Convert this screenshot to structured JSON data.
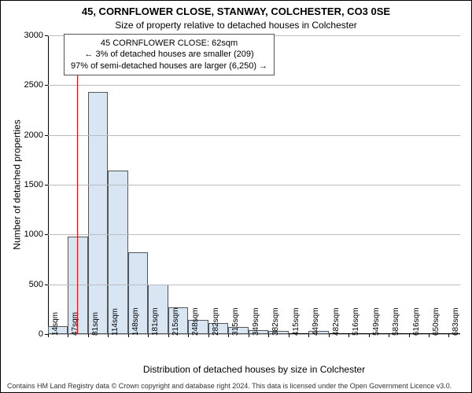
{
  "title": {
    "line1": "45, CORNFLOWER CLOSE, STANWAY, COLCHESTER, CO3 0SE",
    "line2": "Size of property relative to detached houses in Colchester",
    "fontsize_line1": 13,
    "fontsize_line2": 12
  },
  "callout": {
    "line1": "45 CORNFLOWER CLOSE: 62sqm",
    "line2": "← 3% of detached houses are smaller (209)",
    "line3": "97% of semi-detached houses are larger (6,250) →"
  },
  "ylabel": "Number of detached properties",
  "xlabel": "Distribution of detached houses by size in Colchester",
  "credit": "Contains HM Land Registry data © Crown copyright and database right 2024. This data is licensed under the Open Government Licence v3.0.",
  "histogram": {
    "type": "histogram",
    "ymin": 0,
    "ymax": 3000,
    "ytick_step": 500,
    "yticks": [
      0,
      500,
      1000,
      1500,
      2000,
      2500,
      3000
    ],
    "xmin": 14,
    "xmax": 700,
    "first_label_sqm": 14,
    "bin_step": 33.35,
    "bin_labels": [
      "14sqm",
      "47sqm",
      "81sqm",
      "114sqm",
      "148sqm",
      "181sqm",
      "215sqm",
      "248sqm",
      "282sqm",
      "315sqm",
      "349sqm",
      "382sqm",
      "415sqm",
      "449sqm",
      "482sqm",
      "516sqm",
      "549sqm",
      "583sqm",
      "616sqm",
      "650sqm",
      "683sqm"
    ],
    "bin_edges_sqm": [
      14,
      47.35,
      80.7,
      114.05,
      147.4,
      180.75,
      214.1,
      247.45,
      280.8,
      314.15,
      347.5,
      380.85,
      414.2,
      447.55,
      480.9,
      514.25,
      547.6,
      580.95,
      614.3,
      647.65,
      681.0
    ],
    "counts": [
      80,
      980,
      2430,
      1640,
      820,
      500,
      270,
      140,
      110,
      70,
      40,
      30,
      0,
      30,
      0,
      0,
      0,
      0,
      0,
      0,
      0
    ],
    "bar_fill": "#d8e6f3",
    "bar_stroke": "#555555",
    "grid_color": "#b9bcc2",
    "background_color": "#ffffff",
    "marker_sqm": 62,
    "marker_color": "#ff0000"
  },
  "typography": {
    "font_family": "Arial, Helvetica, sans-serif",
    "axis_label_fontsize": 12,
    "tick_fontsize": 11,
    "xtick_fontsize": 10,
    "callout_fontsize": 11,
    "credit_fontsize": 9
  }
}
